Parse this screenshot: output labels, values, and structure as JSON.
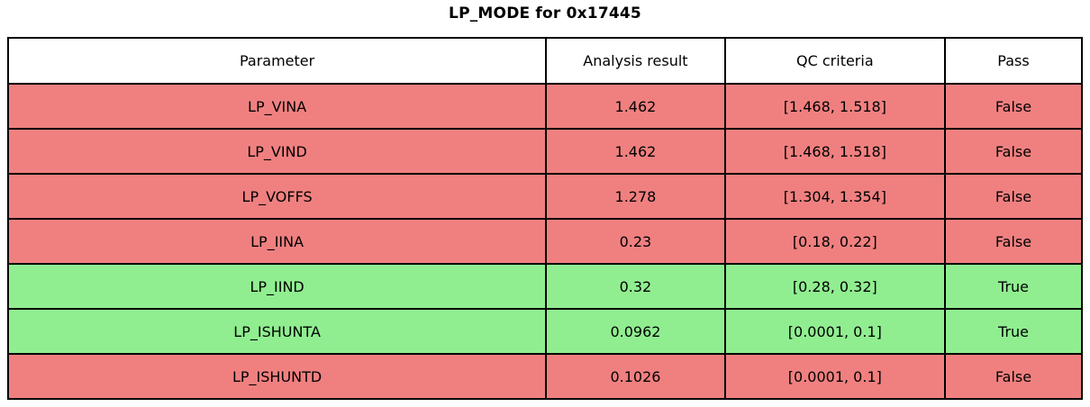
{
  "chart_data": {
    "type": "table",
    "title": "LP_MODE for 0x17445",
    "columns": [
      "Parameter",
      "Analysis result",
      "QC criteria",
      "Pass"
    ],
    "rows": [
      {
        "cells": [
          "LP_VINA",
          "1.462",
          "[1.468, 1.518]",
          "False"
        ],
        "status": "fail"
      },
      {
        "cells": [
          "LP_VIND",
          "1.462",
          "[1.468, 1.518]",
          "False"
        ],
        "status": "fail"
      },
      {
        "cells": [
          "LP_VOFFS",
          "1.278",
          "[1.304, 1.354]",
          "False"
        ],
        "status": "fail"
      },
      {
        "cells": [
          "LP_IINA",
          "0.23",
          "[0.18, 0.22]",
          "False"
        ],
        "status": "fail"
      },
      {
        "cells": [
          "LP_IIND",
          "0.32",
          "[0.28, 0.32]",
          "True"
        ],
        "status": "pass"
      },
      {
        "cells": [
          "LP_ISHUNTA",
          "0.0962",
          "[0.0001, 0.1]",
          "True"
        ],
        "status": "pass"
      },
      {
        "cells": [
          "LP_ISHUNTD",
          "0.1026",
          "[0.0001, 0.1]",
          "False"
        ],
        "status": "fail"
      }
    ],
    "row_colors": {
      "pass": "#90ee90",
      "fail": "#f08080"
    },
    "header_bg": "#ffffff",
    "border_color": "#000000",
    "layout_hints": {
      "grid": "on",
      "header_row": true
    }
  }
}
